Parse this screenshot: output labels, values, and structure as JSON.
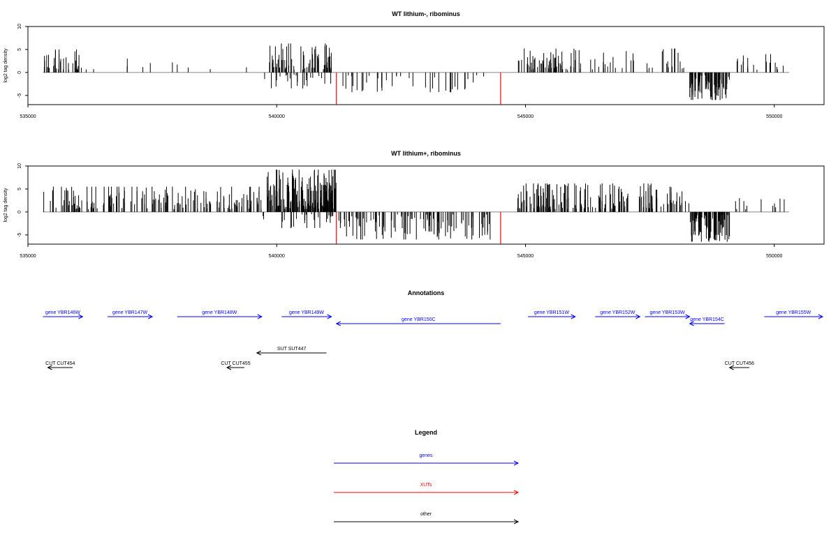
{
  "chart_data": [
    {
      "type": "bar",
      "title": "WT lithium-, ribominus",
      "ylabel": "log2 tag density",
      "xlabel": "",
      "xlim": [
        535000,
        551000
      ],
      "ylim": [
        -7,
        10
      ],
      "x_ticks": [
        535000,
        540000,
        545000,
        550000
      ],
      "y_ticks": [
        -5,
        0,
        5,
        10
      ],
      "positive_regions": [
        {
          "start": 535300,
          "end": 536200,
          "n": 35,
          "max": 5,
          "seed": 11
        },
        {
          "start": 536200,
          "end": 539500,
          "n": 10,
          "max": 3,
          "seed": 12
        },
        {
          "start": 539850,
          "end": 541100,
          "n": 70,
          "max": 6.3,
          "seed": 13
        },
        {
          "start": 544850,
          "end": 546200,
          "n": 65,
          "max": 5.2,
          "seed": 14
        },
        {
          "start": 546300,
          "end": 548200,
          "n": 35,
          "max": 5.2,
          "seed": 15
        },
        {
          "start": 549200,
          "end": 550300,
          "n": 18,
          "max": 4,
          "seed": 16
        }
      ],
      "negative_regions": [
        {
          "start": 539700,
          "end": 541200,
          "n": 25,
          "min": -3.5,
          "seed": 21
        },
        {
          "start": 541300,
          "end": 544300,
          "n": 40,
          "min": -4.3,
          "seed": 22
        },
        {
          "start": 548300,
          "end": 549100,
          "n": 80,
          "min": -6,
          "seed": 23
        }
      ],
      "xut_marks": [
        {
          "x": 541200,
          "y": -7
        },
        {
          "x": 544500,
          "y": -7
        }
      ]
    },
    {
      "type": "bar",
      "title": "WT lithium+, ribominus",
      "ylabel": "log2 tag density",
      "xlabel": "",
      "xlim": [
        535000,
        551000
      ],
      "ylim": [
        -7,
        10
      ],
      "x_ticks": [
        535000,
        540000,
        545000,
        550000
      ],
      "y_ticks": [
        -5,
        0,
        5,
        10
      ],
      "positive_regions": [
        {
          "start": 535300,
          "end": 539700,
          "n": 170,
          "max": 5.5,
          "seed": 31
        },
        {
          "start": 539800,
          "end": 541200,
          "n": 180,
          "max": 9.2,
          "seed": 32
        },
        {
          "start": 544800,
          "end": 548300,
          "n": 170,
          "max": 6.2,
          "seed": 33
        },
        {
          "start": 549200,
          "end": 550200,
          "n": 12,
          "max": 3,
          "seed": 34
        }
      ],
      "negative_regions": [
        {
          "start": 539700,
          "end": 541300,
          "n": 30,
          "min": -3.5,
          "seed": 41
        },
        {
          "start": 541300,
          "end": 544300,
          "n": 110,
          "min": -6,
          "seed": 42
        },
        {
          "start": 548300,
          "end": 549100,
          "n": 90,
          "min": -6.5,
          "seed": 43
        }
      ],
      "xut_marks": [
        {
          "x": 541200,
          "y": -7
        },
        {
          "x": 544500,
          "y": -7
        }
      ]
    }
  ],
  "annotations": {
    "title": "Annotations",
    "features": [
      {
        "label": "gene YBR146W",
        "start": 535300,
        "end": 536100,
        "strand": "+",
        "kind": "gene",
        "row": 0
      },
      {
        "label": "gene YBR147W",
        "start": 536600,
        "end": 537500,
        "strand": "+",
        "kind": "gene",
        "row": 0
      },
      {
        "label": "gene YBR148W",
        "start": 538000,
        "end": 539700,
        "strand": "+",
        "kind": "gene",
        "row": 0
      },
      {
        "label": "gene YBR149W",
        "start": 540100,
        "end": 541100,
        "strand": "+",
        "kind": "gene",
        "row": 0
      },
      {
        "label": "gene YBR150C",
        "start": 541200,
        "end": 544500,
        "strand": "-",
        "kind": "gene",
        "row": 1
      },
      {
        "label": "gene YBR151W",
        "start": 545050,
        "end": 546000,
        "strand": "+",
        "kind": "gene",
        "row": 0
      },
      {
        "label": "gene YBR152W",
        "start": 546400,
        "end": 547300,
        "strand": "+",
        "kind": "gene",
        "row": 0
      },
      {
        "label": "gene YBR153W",
        "start": 547400,
        "end": 548300,
        "strand": "+",
        "kind": "gene",
        "row": 0
      },
      {
        "label": "gene YBR154C",
        "start": 548300,
        "end": 549000,
        "strand": "-",
        "kind": "gene",
        "row": 1
      },
      {
        "label": "gene YBR155W",
        "start": 549800,
        "end": 551000,
        "strand": "+",
        "kind": "gene",
        "row": 0
      },
      {
        "label": "SUT SUT447",
        "start": 539600,
        "end": 541000,
        "strand": "-",
        "kind": "other",
        "row": 2
      },
      {
        "label": "CUT CUT454",
        "start": 535400,
        "end": 535900,
        "strand": "-",
        "kind": "other",
        "row": 3
      },
      {
        "label": "CUT CUT455",
        "start": 539000,
        "end": 539350,
        "strand": "-",
        "kind": "other",
        "row": 3
      },
      {
        "label": "CUT CUT456",
        "start": 549100,
        "end": 549500,
        "strand": "-",
        "kind": "other",
        "row": 3
      }
    ]
  },
  "legend": {
    "title": "Legend",
    "items": [
      {
        "label": "genes",
        "color": "#0000ff"
      },
      {
        "label": "XUTs",
        "color": "#ff0000"
      },
      {
        "label": "other",
        "color": "#000000"
      }
    ]
  },
  "colors": {
    "bars": "#000000",
    "zero_line": "#888888",
    "xut": "#ff0000",
    "gene": "#0000ff",
    "other": "#000000"
  }
}
